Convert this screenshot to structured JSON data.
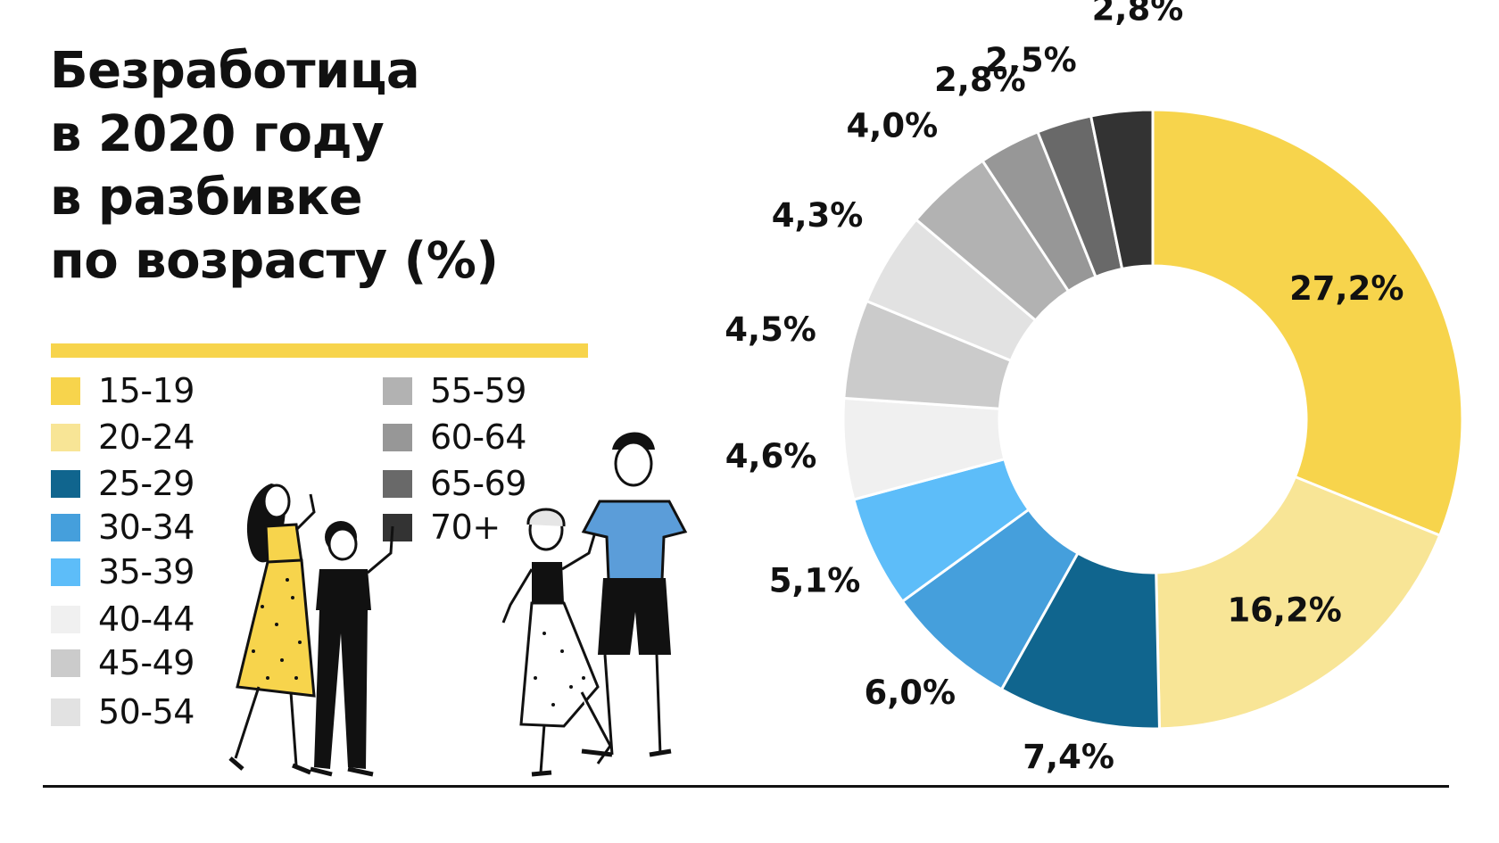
{
  "title_lines": [
    "Безработица",
    "в 2020 году",
    "в разбивке",
    "по возрасту (%)"
  ],
  "colors": {
    "accent": "#f7d44c",
    "text": "#111111",
    "baseline": "#111111"
  },
  "illustration": {
    "description_icon": "people-group-illustration"
  },
  "chart_data": {
    "type": "pie",
    "variant": "donut",
    "title": "Безработица в 2020 году в разбивке по возрасту (%)",
    "categories": [
      "15-19",
      "20-24",
      "25-29",
      "30-34",
      "35-39",
      "40-44",
      "45-49",
      "50-54",
      "55-59",
      "60-64",
      "65-69",
      "70+"
    ],
    "values": [
      27.2,
      16.2,
      7.4,
      6.0,
      5.1,
      4.6,
      4.5,
      4.3,
      4.0,
      2.8,
      2.5,
      2.8
    ],
    "value_labels": [
      "27,2%",
      "16,2%",
      "7,4%",
      "6,0%",
      "5,1%",
      "4,6%",
      "4,5%",
      "4,3%",
      "4,0%",
      "2,8%",
      "2,5%",
      "2,8%"
    ],
    "slice_colors": [
      "#f7d44c",
      "#f8e596",
      "#10658e",
      "#459fdc",
      "#5dbdf9",
      "#f0f0f0",
      "#cbcbcb",
      "#e2e2e2",
      "#b2b2b2",
      "#979797",
      "#696969",
      "#333333"
    ],
    "legend": [
      "15-19",
      "20-24",
      "25-29",
      "30-34",
      "35-39",
      "40-44",
      "45-49",
      "50-54",
      "55-59",
      "60-64",
      "65-69",
      "70+"
    ],
    "legend_placement": "left"
  }
}
